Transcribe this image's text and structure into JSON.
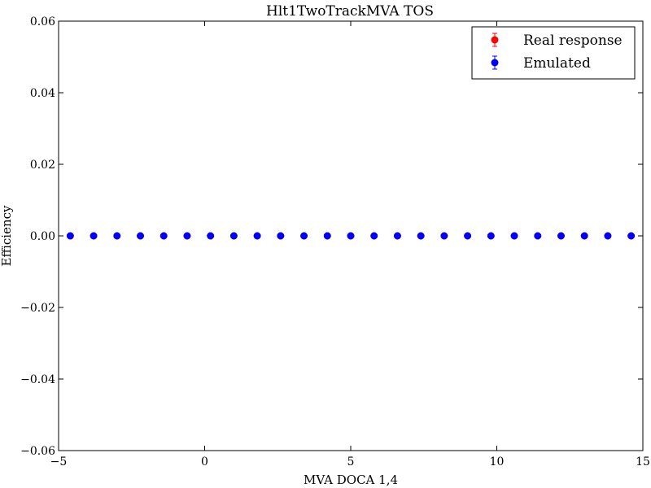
{
  "chart_data": {
    "type": "scatter",
    "title": "Hlt1TwoTrackMVA TOS",
    "xlabel": "MVA DOCA 1,4",
    "ylabel": "Efficiency",
    "xlim": [
      -5,
      15
    ],
    "ylim": [
      -0.06,
      0.06
    ],
    "xticks": [
      -5,
      0,
      5,
      10,
      15
    ],
    "xtick_labels": [
      "−5",
      "0",
      "5",
      "10",
      "15"
    ],
    "yticks": [
      -0.06,
      -0.04,
      -0.02,
      0.0,
      0.02,
      0.04,
      0.06
    ],
    "ytick_labels": [
      "−0.06",
      "−0.04",
      "−0.02",
      "0.00",
      "0.02",
      "0.04",
      "0.06"
    ],
    "grid": false,
    "legend_position": "top-right",
    "x": [
      -4.6,
      -3.8,
      -3.0,
      -2.2,
      -1.4,
      -0.6,
      0.2,
      1.0,
      1.8,
      2.6,
      3.4,
      4.2,
      5.0,
      5.8,
      6.6,
      7.4,
      8.2,
      9.0,
      9.8,
      10.6,
      11.4,
      12.2,
      13.0,
      13.8,
      14.6
    ],
    "series": [
      {
        "name": "Real response",
        "color": "#ff0000",
        "values": [
          0,
          0,
          0,
          0,
          0,
          0,
          0,
          0,
          0,
          0,
          0,
          0,
          0,
          0,
          0,
          0,
          0,
          0,
          0,
          0,
          0,
          0,
          0,
          0,
          0
        ]
      },
      {
        "name": "Emulated",
        "color": "#0000ff",
        "values": [
          0,
          0,
          0,
          0,
          0,
          0,
          0,
          0,
          0,
          0,
          0,
          0,
          0,
          0,
          0,
          0,
          0,
          0,
          0,
          0,
          0,
          0,
          0,
          0,
          0
        ]
      }
    ]
  }
}
